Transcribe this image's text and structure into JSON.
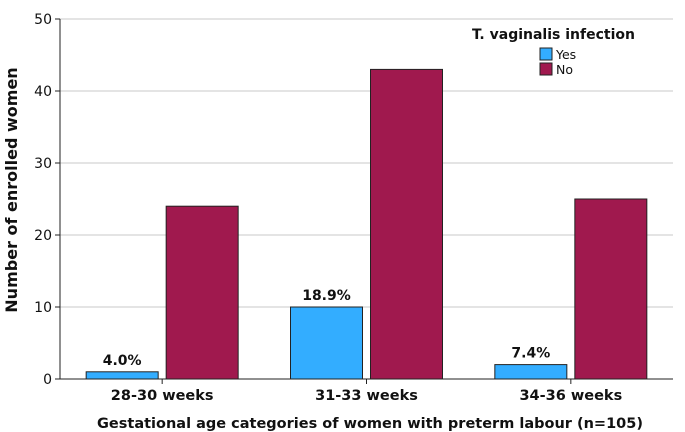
{
  "chart_data": {
    "type": "bar",
    "categories": [
      "28-30 weeks",
      "31-33 weeks",
      "34-36 weeks"
    ],
    "series": [
      {
        "name": "Yes",
        "values": [
          1,
          10,
          2
        ],
        "color": "#33adff"
      },
      {
        "name": "No",
        "values": [
          24,
          43,
          25
        ],
        "color": "#a0194e"
      }
    ],
    "data_labels": [
      "4.0%",
      "18.9%",
      "7.4%"
    ],
    "legend_title": "T. vaginalis infection",
    "legend_position": "top-right",
    "xlabel": "Gestational age categories of women with preterm labour (n=105)",
    "ylabel": "Number of enrolled women",
    "ylim": [
      0,
      50
    ],
    "yticks": [
      0,
      10,
      20,
      30,
      40,
      50
    ],
    "grid": true
  }
}
